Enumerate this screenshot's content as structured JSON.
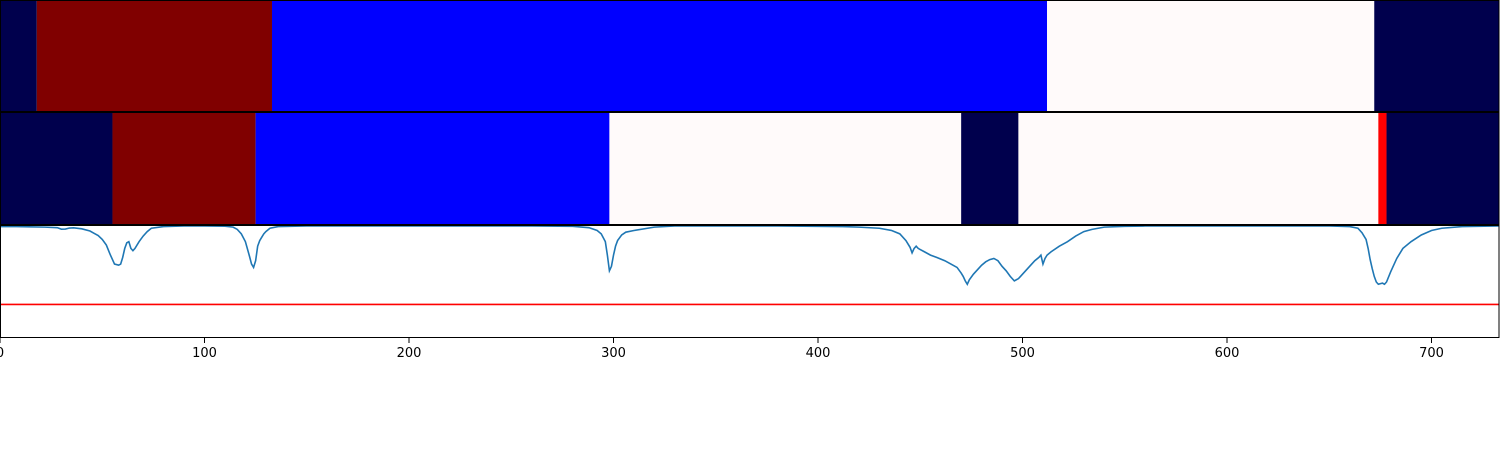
{
  "chart_data": {
    "type": "line",
    "x_range": [
      0,
      733
    ],
    "x_ticks": [
      0,
      100,
      200,
      300,
      400,
      500,
      600,
      700
    ],
    "segment_tracks": [
      {
        "segments": [
          {
            "start": 0,
            "end": 18,
            "color": "#00004d"
          },
          {
            "start": 18,
            "end": 133,
            "color": "#800000"
          },
          {
            "start": 133,
            "end": 512,
            "color": "#0000ff"
          },
          {
            "start": 512,
            "end": 672,
            "color": "#fffafa"
          },
          {
            "start": 672,
            "end": 733,
            "color": "#00004d"
          }
        ]
      },
      {
        "segments": [
          {
            "start": 0,
            "end": 55,
            "color": "#00004d"
          },
          {
            "start": 55,
            "end": 125,
            "color": "#800000"
          },
          {
            "start": 125,
            "end": 298,
            "color": "#0000ff"
          },
          {
            "start": 298,
            "end": 470,
            "color": "#fffafa"
          },
          {
            "start": 470,
            "end": 498,
            "color": "#00004d"
          },
          {
            "start": 498,
            "end": 674,
            "color": "#fffafa"
          },
          {
            "start": 674,
            "end": 678,
            "color": "#ff0000"
          },
          {
            "start": 678,
            "end": 733,
            "color": "#00004d"
          }
        ]
      }
    ],
    "line_panel": {
      "ylim": [
        0,
        1
      ],
      "threshold": 0.3,
      "threshold_color": "#ff0000",
      "line_color": "#1f77b4",
      "x": [
        0,
        8,
        14,
        22,
        28,
        30,
        32,
        34,
        36,
        40,
        44,
        46,
        48,
        50,
        52,
        54,
        56,
        58,
        59,
        60,
        61,
        62,
        63,
        64,
        65,
        66,
        68,
        70,
        72,
        74,
        80,
        90,
        100,
        110,
        114,
        116,
        118,
        120,
        122,
        123,
        124,
        125,
        126,
        127,
        128,
        129,
        130,
        132,
        136,
        150,
        200,
        260,
        280,
        288,
        292,
        294,
        296,
        297,
        298,
        299,
        300,
        301,
        302,
        304,
        306,
        310,
        320,
        330,
        380,
        412,
        420,
        430,
        436,
        440,
        443,
        445,
        446,
        447,
        448,
        449,
        450,
        452,
        455,
        458,
        462,
        465,
        468,
        470,
        471,
        472,
        473,
        474,
        476,
        478,
        480,
        482,
        484,
        486,
        488,
        490,
        492,
        494,
        496,
        498,
        499,
        500,
        502,
        504,
        506,
        508,
        509,
        510,
        511,
        512,
        514,
        518,
        522,
        526,
        530,
        534,
        540,
        550,
        560,
        600,
        650,
        660,
        664,
        666,
        668,
        669,
        670,
        671,
        672,
        673,
        674,
        676,
        677,
        678,
        680,
        683,
        686,
        690,
        695,
        700,
        705,
        715,
        733
      ],
      "y": [
        0.995,
        0.995,
        0.993,
        0.99,
        0.985,
        0.972,
        0.973,
        0.982,
        0.984,
        0.975,
        0.955,
        0.935,
        0.915,
        0.88,
        0.83,
        0.74,
        0.66,
        0.65,
        0.66,
        0.72,
        0.8,
        0.85,
        0.86,
        0.8,
        0.78,
        0.8,
        0.86,
        0.91,
        0.95,
        0.98,
        0.995,
        1.0,
        1.0,
        0.998,
        0.99,
        0.97,
        0.93,
        0.86,
        0.73,
        0.66,
        0.63,
        0.69,
        0.82,
        0.87,
        0.9,
        0.93,
        0.95,
        0.98,
        0.995,
        1.0,
        1.0,
        1.0,
        0.997,
        0.985,
        0.96,
        0.93,
        0.86,
        0.74,
        0.6,
        0.64,
        0.74,
        0.82,
        0.87,
        0.92,
        0.945,
        0.96,
        0.99,
        1.0,
        1.0,
        0.995,
        0.99,
        0.98,
        0.96,
        0.93,
        0.87,
        0.81,
        0.76,
        0.8,
        0.82,
        0.8,
        0.79,
        0.77,
        0.74,
        0.72,
        0.69,
        0.66,
        0.63,
        0.58,
        0.55,
        0.51,
        0.48,
        0.52,
        0.57,
        0.61,
        0.65,
        0.68,
        0.7,
        0.71,
        0.69,
        0.64,
        0.6,
        0.55,
        0.51,
        0.53,
        0.55,
        0.57,
        0.61,
        0.65,
        0.69,
        0.72,
        0.74,
        0.66,
        0.71,
        0.74,
        0.77,
        0.82,
        0.86,
        0.91,
        0.95,
        0.97,
        0.99,
        0.997,
        1.0,
        1.0,
        1.0,
        0.995,
        0.98,
        0.94,
        0.88,
        0.8,
        0.7,
        0.62,
        0.55,
        0.5,
        0.48,
        0.49,
        0.48,
        0.5,
        0.59,
        0.71,
        0.8,
        0.86,
        0.92,
        0.96,
        0.98,
        0.995,
        1.0
      ]
    }
  }
}
